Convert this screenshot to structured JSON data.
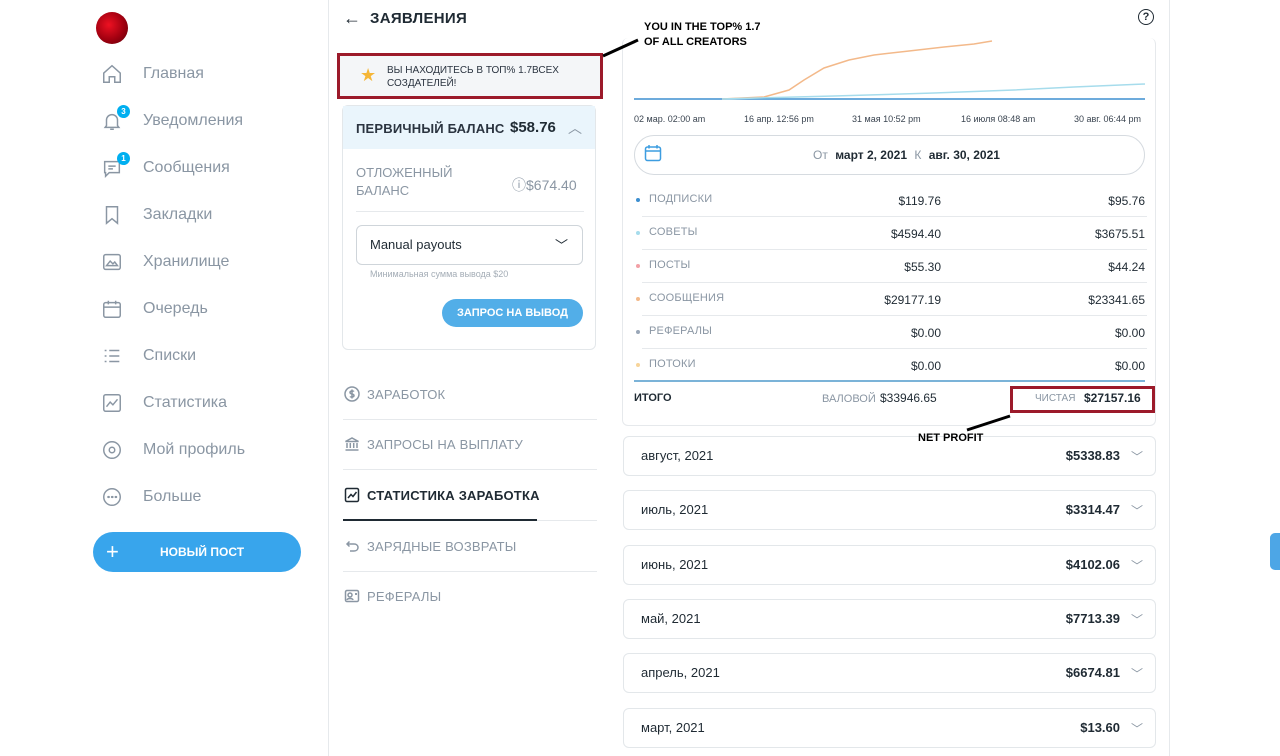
{
  "nav": {
    "items": [
      {
        "label": "Главная",
        "icon": "home-icon"
      },
      {
        "label": "Уведомления",
        "icon": "bell-icon",
        "badge": "3"
      },
      {
        "label": "Сообщения",
        "icon": "message-icon",
        "badge": "1"
      },
      {
        "label": "Закладки",
        "icon": "bookmark-icon"
      },
      {
        "label": "Хранилище",
        "icon": "vault-icon"
      },
      {
        "label": "Очередь",
        "icon": "calendar-icon"
      },
      {
        "label": "Списки",
        "icon": "list-icon"
      },
      {
        "label": "Статистика",
        "icon": "chart-icon"
      },
      {
        "label": "Мой профиль",
        "icon": "profile-icon"
      },
      {
        "label": "Больше",
        "icon": "more-icon"
      }
    ],
    "new_post": {
      "plus": "+",
      "label": "НОВЫЙ ПОСТ"
    }
  },
  "header": {
    "back": "←",
    "title": "ЗАЯВЛЕНИЯ",
    "help": "?"
  },
  "top_banner": {
    "text_line1": "ВЫ НАХОДИТЕСЬ В ТОП% 1.7ВСЕХ",
    "text_line2": "СОЗДАТЕЛЕЙ!"
  },
  "balance": {
    "primary_label": "ПЕРВИЧНЫЙ БАЛАНС",
    "primary_value": "$58.76",
    "pending_label_1": "ОТЛОЖЕННЫЙ",
    "pending_label_2": "БАЛАНС",
    "pending_value": "$674.40",
    "payout_method": "Manual payouts",
    "min_hint": "Минимальная сумма вывода $20",
    "withdraw_label": "ЗАПРОС НА ВЫВОД"
  },
  "menu": [
    {
      "label": "ЗАРАБОТОК",
      "icon": "dollar-icon"
    },
    {
      "label": "ЗАПРОСЫ НА ВЫПЛАТУ",
      "icon": "bank-icon"
    },
    {
      "label": "СТАТИСТИКА ЗАРАБОТКА",
      "icon": "chart-icon",
      "active": true
    },
    {
      "label": "ЗАРЯДНЫЕ ВОЗВРАТЫ",
      "icon": "undo-icon"
    },
    {
      "label": "РЕФЕРАЛЫ",
      "icon": "referral-icon"
    }
  ],
  "chart": {
    "x_ticks": [
      "02 мар. 02:00 am",
      "16 апр. 12:56 pm",
      "31 мая 10:52 pm",
      "16 июля 08:48 am",
      "30 авг. 06:44 pm"
    ],
    "colors": {
      "orange": "#f3b98a",
      "cyan": "#a6dcec",
      "blue": "#3d8fd0"
    }
  },
  "date_range": {
    "from_label": "От",
    "from": "март 2, 2021",
    "to_label": "К",
    "to": "авг. 30, 2021"
  },
  "earnings": [
    {
      "label": "ПОДПИСКИ",
      "gross": "$119.76",
      "net": "$95.76",
      "color": "#3d8fd0"
    },
    {
      "label": "СОВЕТЫ",
      "gross": "$4594.40",
      "net": "$3675.51",
      "color": "#a6dcec"
    },
    {
      "label": "ПОСТЫ",
      "gross": "$55.30",
      "net": "$44.24",
      "color": "#f2a0a6"
    },
    {
      "label": "СООБЩЕНИЯ",
      "gross": "$29177.19",
      "net": "$23341.65",
      "color": "#f3b98a"
    },
    {
      "label": "РЕФЕРАЛЫ",
      "gross": "$0.00",
      "net": "$0.00",
      "color": "#9aa7b8"
    },
    {
      "label": "ПОТОКИ",
      "gross": "$0.00",
      "net": "$0.00",
      "color": "#f7d49a"
    }
  ],
  "totals": {
    "label": "ИТОГО",
    "gross_label": "ВАЛОВОЙ",
    "gross": "$33946.65",
    "net_label": "ЧИСТАЯ",
    "net": "$27157.16"
  },
  "months": [
    {
      "label": "август, 2021",
      "value": "$5338.83"
    },
    {
      "label": "июль, 2021",
      "value": "$3314.47"
    },
    {
      "label": "июнь, 2021",
      "value": "$4102.06"
    },
    {
      "label": "май, 2021",
      "value": "$7713.39"
    },
    {
      "label": "апрель, 2021",
      "value": "$6674.81"
    },
    {
      "label": "март, 2021",
      "value": "$13.60"
    }
  ],
  "annotations": {
    "top_line1": "YOU IN THE TOP% 1.7",
    "top_line2": "OF ALL CREATORS",
    "net_profit": "NET PROFIT"
  }
}
